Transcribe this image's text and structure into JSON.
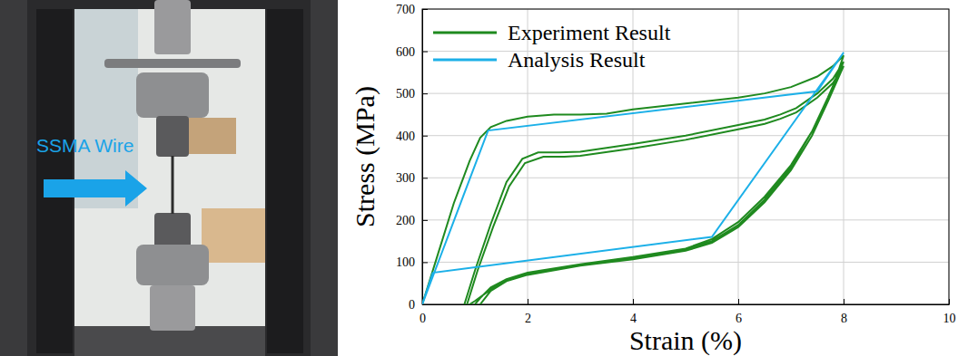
{
  "photo": {
    "label": "SSMA Wire"
  },
  "chart_data": {
    "type": "line",
    "x_label": "Strain (%)",
    "y_label": "Stress (MPa)",
    "xlim": [
      0,
      10
    ],
    "xticks": [
      0,
      2,
      4,
      6,
      8,
      10
    ],
    "ylim": [
      0,
      700
    ],
    "yticks": [
      0,
      100,
      200,
      300,
      400,
      500,
      600,
      700
    ],
    "grid": true,
    "legend": "upper left",
    "series": [
      {
        "name": "Experiment Result",
        "color": "#1f8a1f",
        "line_style": "solid",
        "x": [
          0,
          0.3,
          0.6,
          0.9,
          1.1,
          1.3,
          1.6,
          2,
          2.5,
          3,
          3.5,
          4,
          5,
          6,
          6.5,
          7,
          7.5,
          7.8,
          8,
          7.7,
          7.4,
          7,
          6.5,
          6,
          5.5,
          5,
          4,
          3,
          2,
          1.6,
          1.3,
          1.1,
          1.0,
          null,
          0.8,
          1.0,
          1.3,
          1.6,
          1.9,
          2.2,
          2.6,
          3,
          4,
          5,
          6,
          6.5,
          6.8,
          7.1,
          7.5,
          7.8,
          8,
          7.7,
          7.4,
          7,
          6.5,
          6,
          5.5,
          5,
          4,
          3,
          2,
          1.6,
          1.3,
          1.0,
          0.9,
          null,
          0.85,
          1.05,
          1.35,
          1.65,
          1.95,
          2.3,
          2.7,
          3,
          4,
          5,
          6,
          6.5,
          6.8,
          7.1,
          7.5,
          7.8,
          8,
          7.7,
          7.4,
          7,
          6.5,
          6,
          5.5,
          5,
          4,
          3,
          2,
          1.6,
          1.3,
          1.1
        ],
        "values": [
          0,
          120,
          240,
          340,
          395,
          420,
          435,
          445,
          450,
          450,
          452,
          462,
          476,
          490,
          500,
          515,
          540,
          565,
          590,
          480,
          410,
          330,
          255,
          195,
          155,
          132,
          112,
          95,
          75,
          60,
          40,
          15,
          0,
          null,
          0,
          80,
          190,
          290,
          345,
          360,
          360,
          362,
          380,
          400,
          425,
          438,
          450,
          465,
          500,
          535,
          575,
          490,
          410,
          325,
          248,
          188,
          150,
          130,
          110,
          95,
          72,
          58,
          35,
          8,
          0,
          null,
          0,
          80,
          185,
          280,
          335,
          350,
          350,
          352,
          370,
          390,
          415,
          428,
          440,
          455,
          490,
          525,
          565,
          480,
          400,
          318,
          242,
          183,
          146,
          127,
          107,
          92,
          70,
          55,
          32,
          0
        ]
      },
      {
        "name": "Analysis Result",
        "color": "#1cb0e8",
        "line_style": "solid",
        "x": [
          0,
          1.25,
          7.5,
          8,
          5.5,
          0.2,
          0
        ],
        "values": [
          0,
          412,
          505,
          597,
          160,
          75,
          0
        ]
      }
    ]
  }
}
